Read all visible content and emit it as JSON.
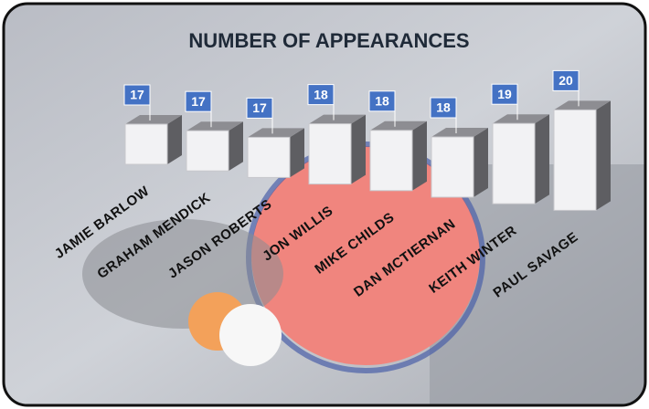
{
  "chart_data": {
    "type": "bar3d",
    "title": "NUMBER OF APPEARANCES",
    "categories": [
      "JAMIE BARLOW",
      "GRAHAM MENDICK",
      "JASON ROBERTS",
      "JON WILLIS",
      "MIKE CHILDS",
      "DAN MCTIERNAN",
      "KEITH WINTER",
      "PAUL SAVAGE"
    ],
    "values": [
      17,
      17,
      17,
      18,
      18,
      18,
      19,
      20
    ],
    "ylim": [
      15,
      20
    ],
    "color": "#f2f2f4",
    "side_color": "#5e5e62",
    "label_color": "#4472c4"
  }
}
